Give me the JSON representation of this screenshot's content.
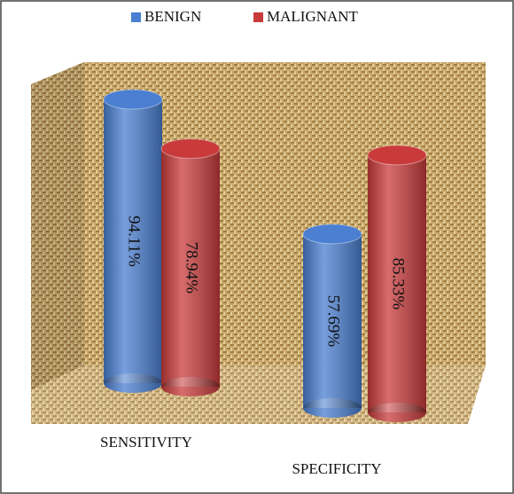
{
  "chart_data": {
    "type": "bar",
    "categories": [
      "SENSITIVITY",
      "SPECIFICITY"
    ],
    "series": [
      {
        "name": "BENIGN",
        "color": "#4a7fd1",
        "values": [
          94.11,
          57.69
        ],
        "value_labels": [
          "94.11%",
          "57.69%"
        ]
      },
      {
        "name": "MALIGNANT",
        "color": "#c93b3b",
        "values": [
          78.94,
          85.33
        ],
        "value_labels": [
          "78.94%",
          "85.33%"
        ]
      }
    ]
  }
}
